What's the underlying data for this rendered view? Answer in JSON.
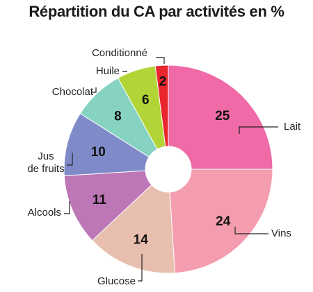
{
  "chart_data": {
    "type": "pie",
    "title": "Répartition du CA par activités en %",
    "donut": true,
    "slices": [
      {
        "label": "Lait",
        "value": 25,
        "color": "#ef6aa6"
      },
      {
        "label": "Vins",
        "value": 24,
        "color": "#f49daf"
      },
      {
        "label": "Glucose",
        "value": 14,
        "color": "#e8bfae"
      },
      {
        "label": "Alcools",
        "value": 11,
        "color": "#bd76b6"
      },
      {
        "label": "Jus de fruits",
        "label_lines": [
          "Jus",
          "de fruits"
        ],
        "value": 10,
        "color": "#7f8bc8"
      },
      {
        "label": "Chocolat",
        "value": 8,
        "color": "#86d3c2"
      },
      {
        "label": "Huile",
        "value": 6,
        "color": "#b3d437"
      },
      {
        "label": "Conditionné",
        "value": 2,
        "color": "#e8262c"
      }
    ]
  }
}
